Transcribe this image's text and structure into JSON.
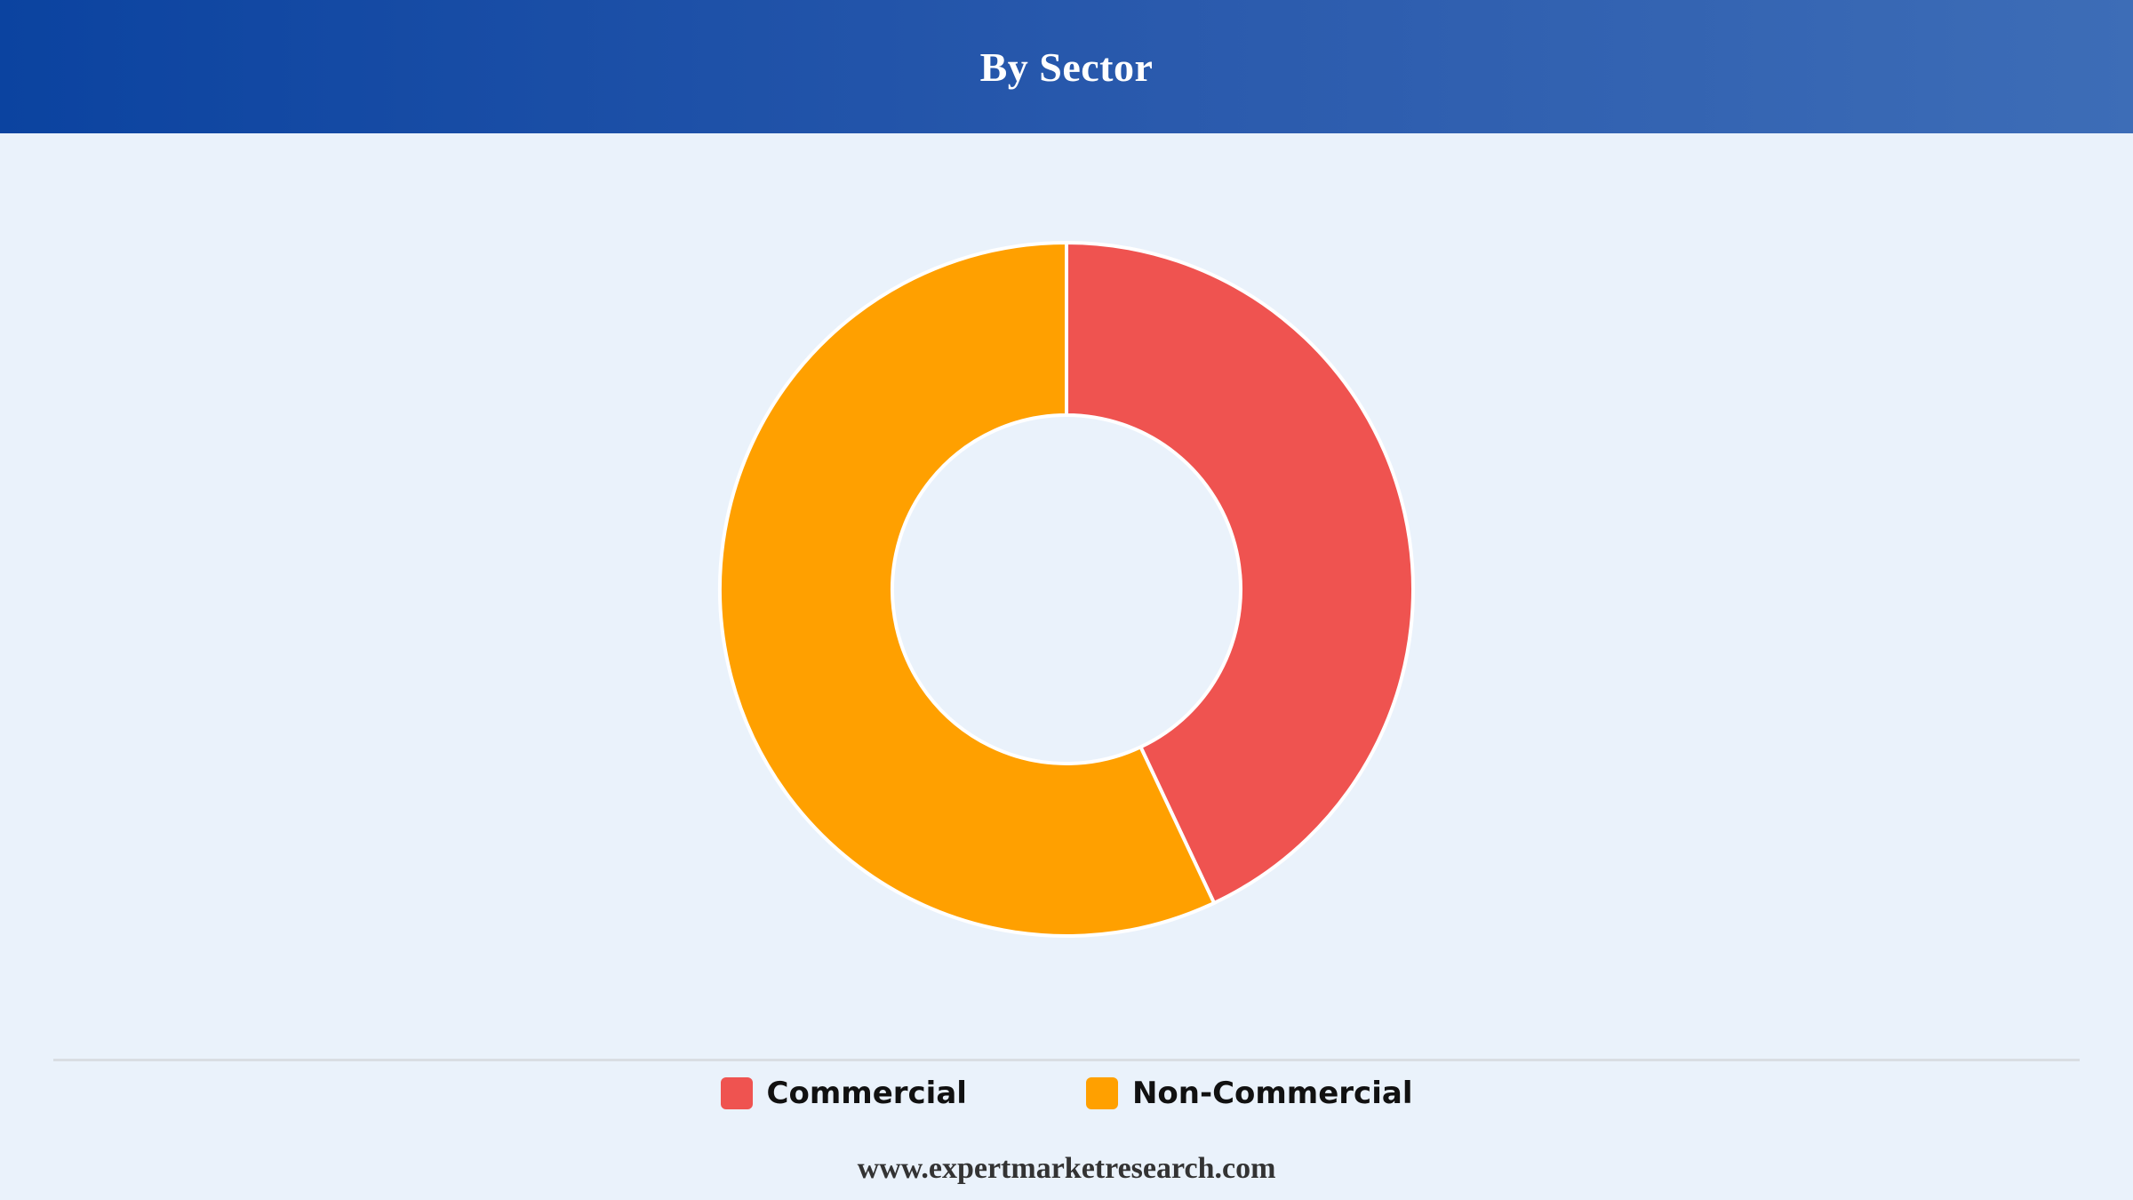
{
  "header": {
    "title": "By Sector"
  },
  "chart_data": {
    "type": "pie",
    "style": "donut",
    "categories": [
      "Commercial",
      "Non-Commercial"
    ],
    "values": [
      43,
      57
    ],
    "colors": [
      "#ef5350",
      "#ffa000"
    ],
    "legend_position": "bottom"
  },
  "legend": {
    "items": [
      {
        "label": "Commercial",
        "color": "#ef5350"
      },
      {
        "label": "Non-Commercial",
        "color": "#ffa000"
      }
    ]
  },
  "footer": {
    "source": "www.expertmarketresearch.com"
  }
}
